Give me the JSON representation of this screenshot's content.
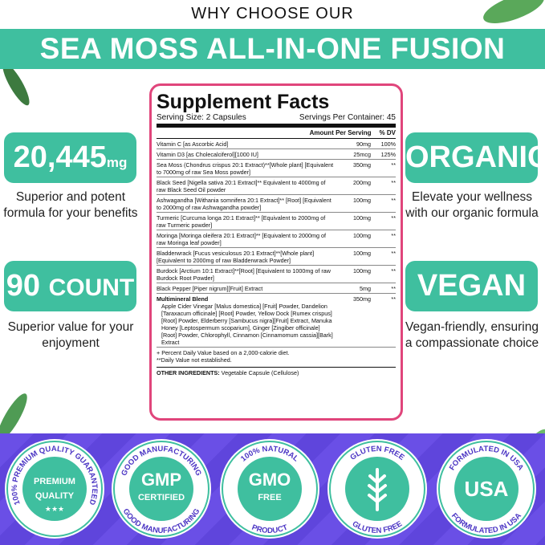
{
  "header": {
    "kicker": "WHY CHOOSE OUR",
    "title": "SEA MOSS ALL-IN-ONE FUSION"
  },
  "left_features": [
    {
      "value": "20,445",
      "unit": "mg",
      "text": "Superior and potent formula for your benefits"
    },
    {
      "value": "90",
      "unit": "COUNT",
      "text": "Superior value for your enjoyment"
    }
  ],
  "right_features": [
    {
      "value": "ORGANIC",
      "text": "Elevate your wellness with our organic formula"
    },
    {
      "value": "VEGAN",
      "text": "Vegan-friendly, ensuring a compassionate choice"
    }
  ],
  "facts": {
    "title": "Supplement Facts",
    "serving_size": "Serving Size: 2 Capsules",
    "servings": "Servings Per Container: 45",
    "columns": [
      "Amount Per Serving",
      "% DV"
    ],
    "rows": [
      {
        "name": "Vitamin C [as Ascorbic Acid]",
        "amount": "90mg",
        "dv": "100%"
      },
      {
        "name": "Vitamin D3 [as Cholecalciferol][1000 IU]",
        "amount": "25mcg",
        "dv": "125%"
      },
      {
        "name": "Sea Moss (Chondrus crispus 20:1 Extract)**[Whole plant] [Equivalent to 7000mg of raw Sea Moss powder]",
        "amount": "350mg",
        "dv": "**"
      },
      {
        "name": "Black Seed [Nigella sativa 20:1 Extract]** Equivalent to 4000mg of raw Black Seed Oil powder",
        "amount": "200mg",
        "dv": "**"
      },
      {
        "name": "Ashwagandha [Withania somnifera 20:1 Extract]** [Root] [Equivalent to 2000mg of raw Ashwagandha powder]",
        "amount": "100mg",
        "dv": "**"
      },
      {
        "name": "Turmeric [Curcuma longa 20:1 Extract]** [Equivalent to 2000mg of raw Turmeric powder]",
        "amount": "100mg",
        "dv": "**"
      },
      {
        "name": "Moringa [Moringa oleifera 20:1 Extract]** [Equivalent to 2000mg of raw Moringa leaf powder]",
        "amount": "100mg",
        "dv": "**"
      },
      {
        "name": "Bladderwrack [Fucus vesiculosus 20:1 Extract]**[Whole plant] [Equivalent to 2000mg of raw Bladderwrack Powder]",
        "amount": "100mg",
        "dv": "**"
      },
      {
        "name": "Burdock [Arctium 10:1 Extract]**[Root] [Equivalent to 1000mg of raw Burdock Root Powder]",
        "amount": "100mg",
        "dv": "**"
      },
      {
        "name": "Black Pepper [Piper nigrum][Fruit] Extract",
        "amount": "5mg",
        "dv": "**"
      },
      {
        "name": "Multimineral Blend",
        "amount": "350mg",
        "dv": "**",
        "detail": "Apple Cider Vinegar [Malus domestica] [Fruit] Powder, Dandelion [Taraxacum officinale] [Root] Powder, Yellow Dock [Rumex crispus][Root] Powder, Elderberry [Sambucus nigra][Fruit] Extract, Manuka Honey [Leptospermum scoparium], Ginger [Zingiber officinale][Root] Powder, Chlorophyll, Cinnamon [Cinnamomum cassia][Bark] Extract"
      }
    ],
    "footnotes": [
      "+ Percent Daily Value based on a 2,000-calorie diet.",
      "**Daily Value not established."
    ],
    "other_label": "OTHER INGREDIENTS:",
    "other_text": "Vegetable Capsule (Cellulose)"
  },
  "badges": [
    {
      "ring_top": "100% PREMIUM QUALITY GUARANTEED",
      "center": [
        "PREMIUM",
        "QUALITY"
      ]
    },
    {
      "ring_top": "GOOD MANUFACTURING",
      "ring_bottom": "GOOD MANUFACTURING",
      "center": [
        "GMP",
        "CERTIFIED"
      ]
    },
    {
      "ring_top": "100% NATURAL",
      "ring_bottom": "PRODUCT",
      "center": [
        "GMO",
        "FREE"
      ]
    },
    {
      "ring_top": "GLUTEN FREE",
      "ring_bottom": "GLUTEN FREE",
      "center": []
    },
    {
      "ring_top": "FORMULATED IN USA",
      "ring_bottom": "FORMULATED IN USA",
      "center": [
        "USA"
      ]
    }
  ]
}
